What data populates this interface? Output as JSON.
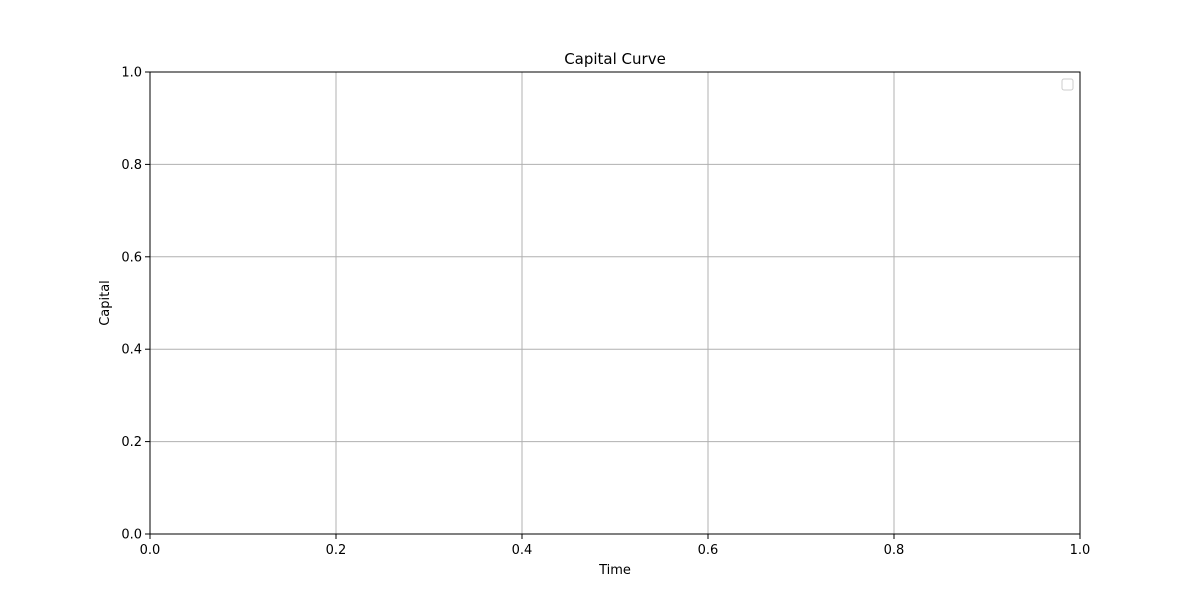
{
  "chart_data": {
    "type": "line",
    "title": "Capital Curve",
    "xlabel": "Time",
    "ylabel": "Capital",
    "xlim": [
      0.0,
      1.0
    ],
    "ylim": [
      0.0,
      1.0
    ],
    "xticks": [
      0.0,
      0.2,
      0.4,
      0.6,
      0.8,
      1.0
    ],
    "yticks": [
      0.0,
      0.2,
      0.4,
      0.6,
      0.8,
      1.0
    ],
    "xtick_labels": [
      "0.0",
      "0.2",
      "0.4",
      "0.6",
      "0.8",
      "1.0"
    ],
    "ytick_labels": [
      "0.0",
      "0.2",
      "0.4",
      "0.6",
      "0.8",
      "1.0"
    ],
    "grid": true,
    "legend": {
      "placement": "top-right",
      "entries": []
    },
    "series": [],
    "colors": {
      "grid": "#b0b0b0",
      "axis": "#000000",
      "background": "#ffffff",
      "legend_border": "#cccccc"
    }
  }
}
